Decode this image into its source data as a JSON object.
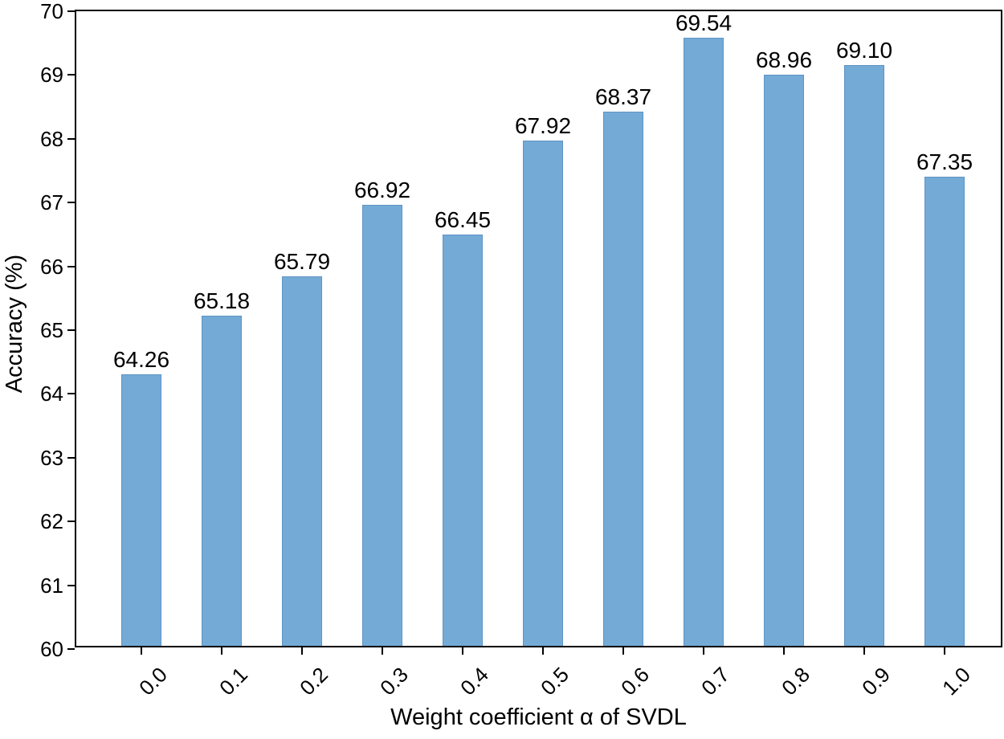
{
  "figure": {
    "background": "#ffffff",
    "bar_fill_color": "#74aad6",
    "bar_edge_color": "#5e94c4",
    "axis_color": "#000000",
    "text_color": "#000000"
  },
  "chart_data": {
    "type": "bar",
    "title": "",
    "xlabel": "Weight coefficient α of SVDL",
    "ylabel": "Accuracy (%)",
    "categories": [
      "0.0",
      "0.1",
      "0.2",
      "0.3",
      "0.4",
      "0.5",
      "0.6",
      "0.7",
      "0.8",
      "0.9",
      "1.0"
    ],
    "values": [
      64.26,
      65.18,
      65.79,
      66.92,
      66.45,
      67.92,
      68.37,
      69.54,
      68.96,
      69.1,
      67.35
    ],
    "value_labels": [
      "64.26",
      "65.18",
      "65.79",
      "66.92",
      "66.45",
      "67.92",
      "68.37",
      "69.54",
      "68.96",
      "69.10",
      "67.35"
    ],
    "ylim": [
      60,
      70
    ],
    "yticks": [
      60,
      61,
      62,
      63,
      64,
      65,
      66,
      67,
      68,
      69,
      70
    ],
    "ytick_labels": [
      "60",
      "61",
      "62",
      "63",
      "64",
      "65",
      "66",
      "67",
      "68",
      "69",
      "70"
    ],
    "grid": false,
    "legend": null,
    "xtick_rotation_deg": 45,
    "bar_labels_shown": true
  }
}
